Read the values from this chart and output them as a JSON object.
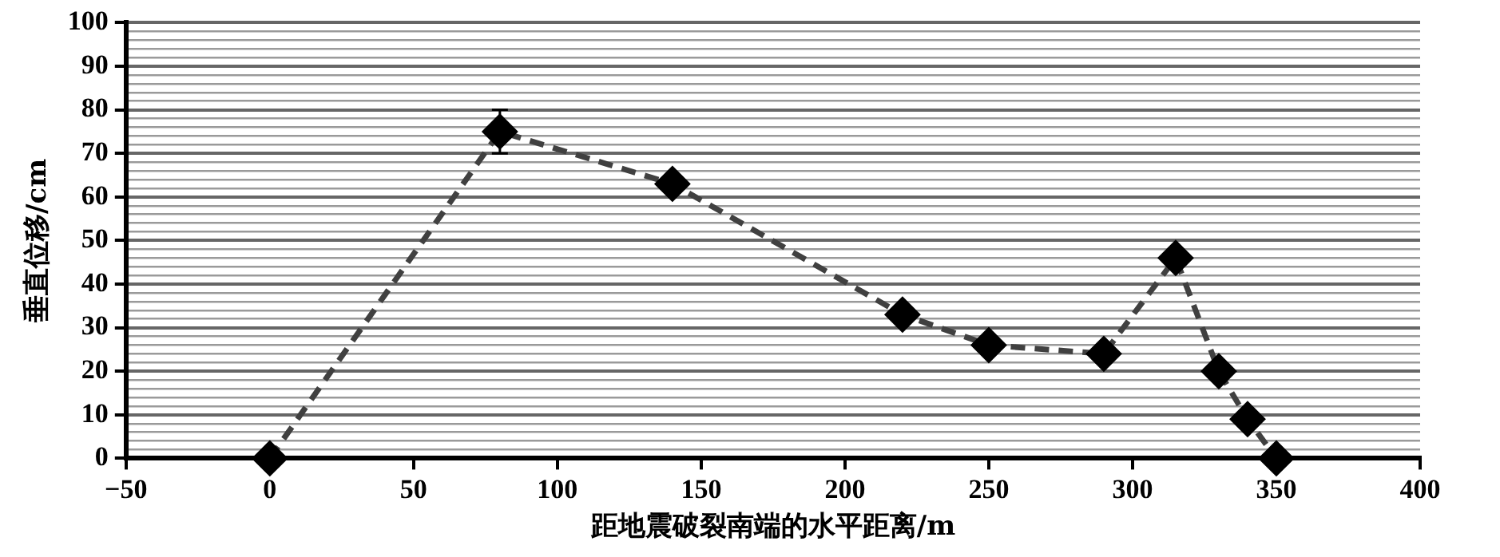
{
  "chart_data": {
    "type": "line",
    "xlabel": "距地震破裂南端的水平距离/m",
    "ylabel": "垂直位移/cm",
    "x": [
      0,
      80,
      140,
      220,
      250,
      290,
      315,
      330,
      340,
      350
    ],
    "series": [
      {
        "color": "#404040",
        "values": [
          0,
          75,
          63,
          33,
          26,
          24,
          46,
          20,
          9,
          0
        ],
        "errors": [
          null,
          5,
          null,
          null,
          null,
          null,
          null,
          null,
          null,
          null
        ]
      }
    ],
    "marker": "diamond",
    "line_style": "dashed",
    "grid": "y",
    "legend": false,
    "xlim": [
      -50,
      400
    ],
    "xticks": [
      -50,
      0,
      50,
      100,
      150,
      200,
      250,
      300,
      350,
      400
    ],
    "ylim": [
      0,
      100
    ],
    "yticks": [
      0,
      {
        "value": 2,
        "label": null
      },
      {
        "value": 4,
        "label": null
      },
      {
        "value": 6,
        "label": null
      },
      {
        "value": 8,
        "label": null
      },
      10,
      {
        "value": 12,
        "label": null
      },
      {
        "value": 14,
        "label": null
      },
      {
        "value": 16,
        "label": null
      },
      {
        "value": 18,
        "label": null
      },
      20,
      {
        "value": 22,
        "label": null
      },
      {
        "value": 24,
        "label": null
      },
      {
        "value": 26,
        "label": null
      },
      {
        "value": 28,
        "label": null
      },
      30,
      {
        "value": 32,
        "label": null
      },
      {
        "value": 34,
        "label": null
      },
      {
        "value": 36,
        "label": null
      },
      {
        "value": 38,
        "label": null
      },
      40,
      {
        "value": 42,
        "label": null
      },
      {
        "value": 44,
        "label": null
      },
      {
        "value": 46,
        "label": null
      },
      {
        "value": 48,
        "label": null
      },
      50,
      {
        "value": 52,
        "label": null
      },
      {
        "value": 54,
        "label": null
      },
      {
        "value": 56,
        "label": null
      },
      {
        "value": 58,
        "label": null
      },
      60,
      {
        "value": 62,
        "label": null
      },
      {
        "value": 64,
        "label": null
      },
      {
        "value": 66,
        "label": null
      },
      {
        "value": 68,
        "label": null
      },
      70,
      {
        "value": 72,
        "label": null
      },
      {
        "value": 74,
        "label": null
      },
      {
        "value": 76,
        "label": null
      },
      {
        "value": 78,
        "label": null
      },
      80,
      {
        "value": 82,
        "label": null
      },
      {
        "value": 84,
        "label": null
      },
      {
        "value": 86,
        "label": null
      },
      {
        "value": 88,
        "label": null
      },
      90,
      {
        "value": 92,
        "label": null
      },
      {
        "value": 94,
        "label": null
      },
      {
        "value": 96,
        "label": null
      },
      {
        "value": 98,
        "label": null
      },
      100
    ]
  }
}
